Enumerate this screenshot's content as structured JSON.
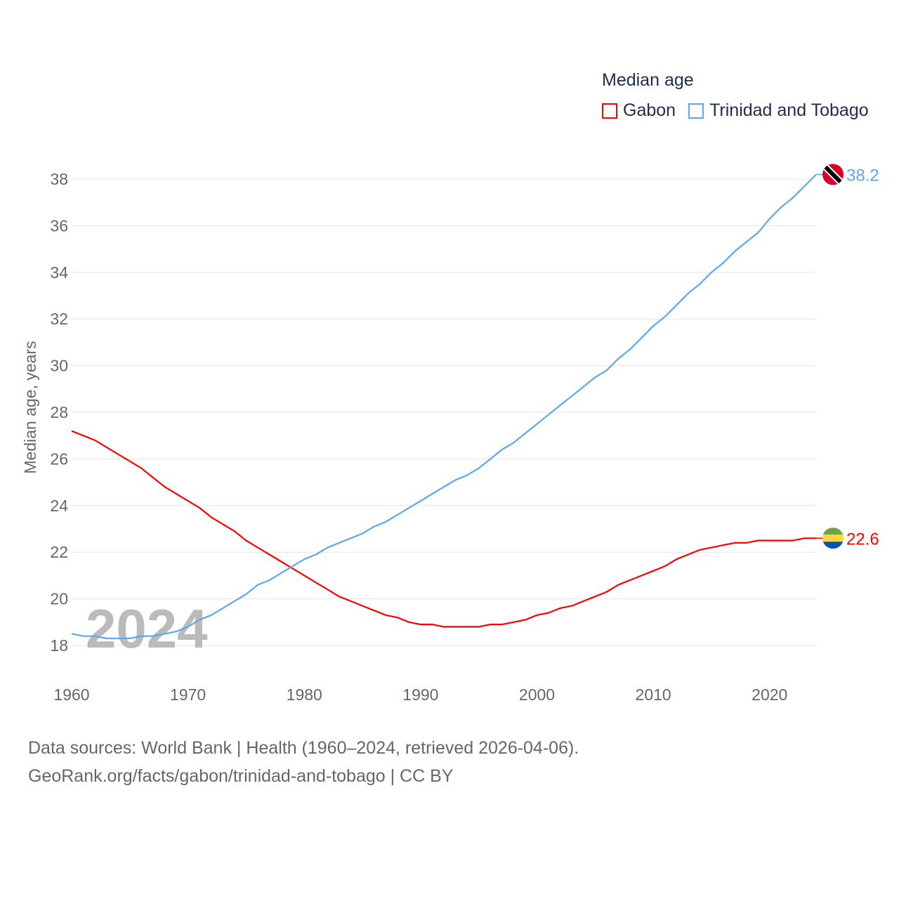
{
  "legend": {
    "title": "Median age",
    "items": [
      {
        "name": "Gabon",
        "color": "#ff0000"
      },
      {
        "name": "Trinidad and Tobago",
        "color": "#5ea6ee"
      }
    ]
  },
  "source": {
    "line1": "Data sources: World Bank | Health (1960–2024, retrieved 2026-04-06).",
    "line2": "GeoRank.org/facts/gabon/trinidad-and-tobago | CC BY"
  },
  "chart_data": {
    "type": "line",
    "title": "Median age",
    "ylabel": "Median age, years",
    "xlabel": "",
    "year_watermark": "2024",
    "xlim": [
      1960,
      2024
    ],
    "ylim": [
      18,
      38
    ],
    "xticks": [
      1960,
      1970,
      1980,
      1990,
      2000,
      2010,
      2020
    ],
    "yticks": [
      18,
      20,
      22,
      24,
      26,
      28,
      30,
      32,
      34,
      36,
      38
    ],
    "grid": true,
    "legend_position": "top-right",
    "x_start": 1960,
    "series": [
      {
        "name": "Gabon",
        "color": "#ff0000",
        "end_label": "22.6",
        "flag": "gabon",
        "values": [
          27.2,
          27.0,
          26.8,
          26.5,
          26.2,
          25.9,
          25.6,
          25.2,
          24.8,
          24.5,
          24.2,
          23.9,
          23.5,
          23.2,
          22.9,
          22.5,
          22.2,
          21.9,
          21.6,
          21.3,
          21.0,
          20.7,
          20.4,
          20.1,
          19.9,
          19.7,
          19.5,
          19.3,
          19.2,
          19.0,
          18.9,
          18.9,
          18.8,
          18.8,
          18.8,
          18.8,
          18.9,
          18.9,
          19.0,
          19.1,
          19.3,
          19.4,
          19.6,
          19.7,
          19.9,
          20.1,
          20.3,
          20.6,
          20.8,
          21.0,
          21.2,
          21.4,
          21.7,
          21.9,
          22.1,
          22.2,
          22.3,
          22.4,
          22.4,
          22.5,
          22.5,
          22.5,
          22.5,
          22.6,
          22.6
        ]
      },
      {
        "name": "Trinidad and Tobago",
        "color": "#5ea6ee",
        "end_label": "38.2",
        "flag": "trinidad",
        "values": [
          18.5,
          18.4,
          18.4,
          18.3,
          18.3,
          18.3,
          18.4,
          18.4,
          18.5,
          18.6,
          18.8,
          19.1,
          19.3,
          19.6,
          19.9,
          20.2,
          20.6,
          20.8,
          21.1,
          21.4,
          21.7,
          21.9,
          22.2,
          22.4,
          22.6,
          22.8,
          23.1,
          23.3,
          23.6,
          23.9,
          24.2,
          24.5,
          24.8,
          25.1,
          25.3,
          25.6,
          26.0,
          26.4,
          26.7,
          27.1,
          27.5,
          27.9,
          28.3,
          28.7,
          29.1,
          29.5,
          29.8,
          30.3,
          30.7,
          31.2,
          31.7,
          32.1,
          32.6,
          33.1,
          33.5,
          34.0,
          34.4,
          34.9,
          35.3,
          35.7,
          36.3,
          36.8,
          37.2,
          37.7,
          38.2
        ]
      }
    ]
  }
}
